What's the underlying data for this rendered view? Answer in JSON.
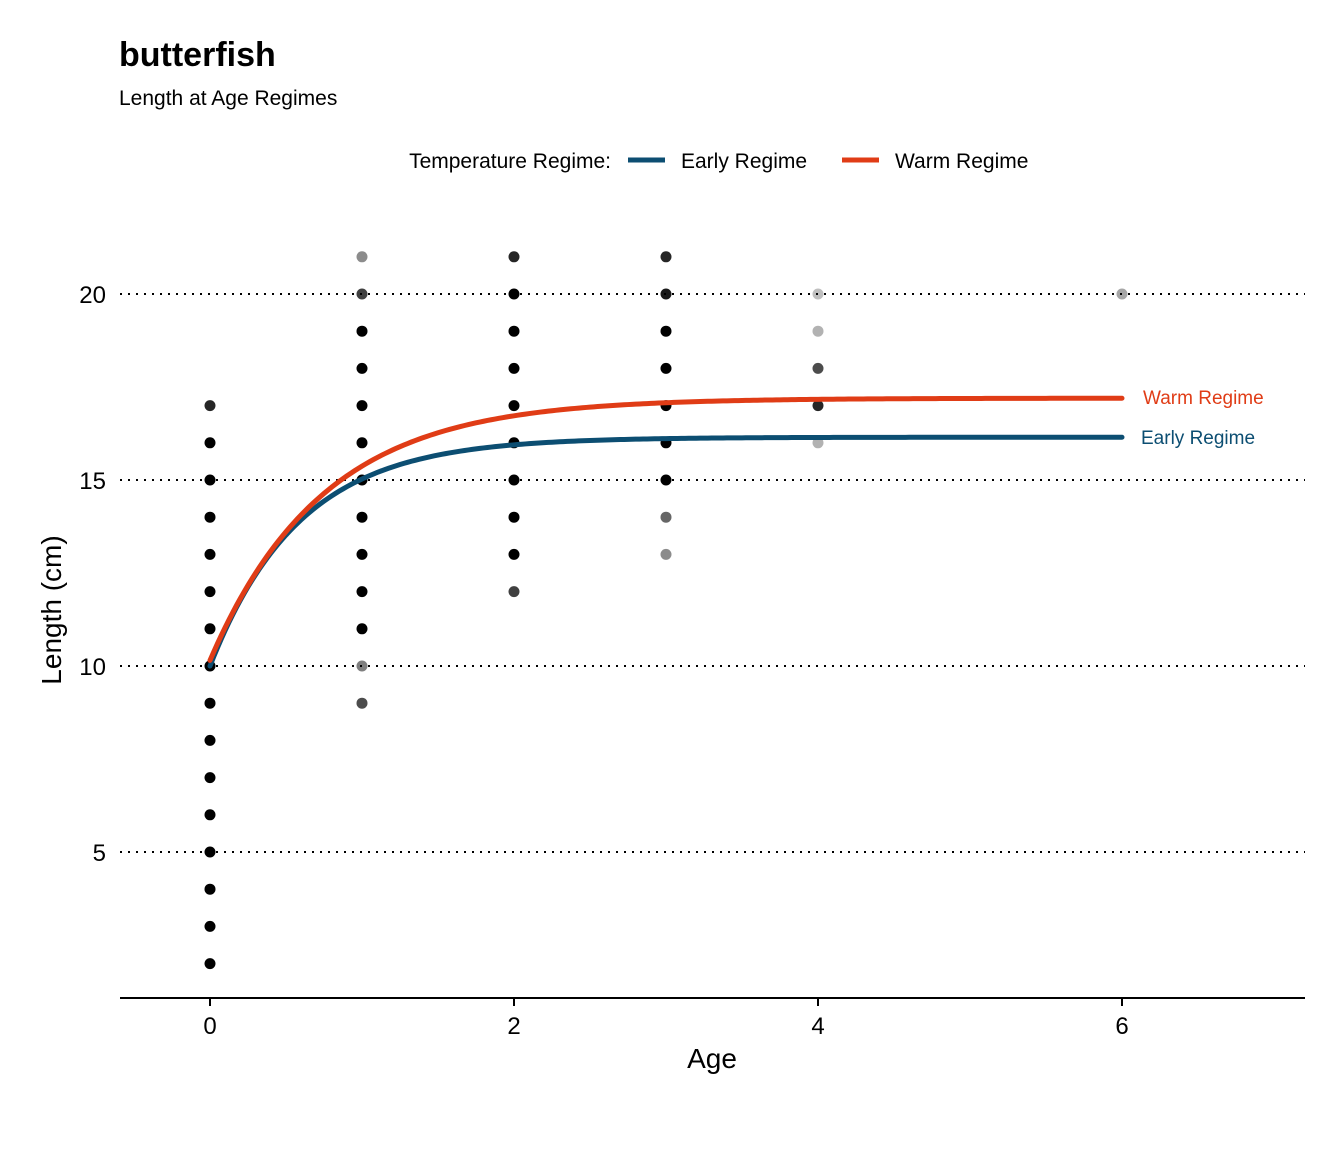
{
  "chart_data": {
    "type": "scatter",
    "title": "butterfish",
    "subtitle": "Length at Age Regimes",
    "xlabel": "Age",
    "ylabel": "Length (cm)",
    "xlim": [
      -0.6,
      7.2
    ],
    "ylim": [
      1,
      22
    ],
    "x_ticks": [
      "0",
      "2",
      "4",
      "6"
    ],
    "y_ticks": [
      "5",
      "10",
      "15",
      "20"
    ],
    "grid": "horizontal dotted",
    "legend": {
      "title": "Temperature Regime:",
      "position": "top",
      "entries": [
        {
          "label": "Early Regime",
          "color": "#0c4e72"
        },
        {
          "label": "Warm Regime",
          "color": "#e03c16"
        }
      ]
    },
    "points": [
      {
        "age": 0,
        "lengths": [
          2,
          3,
          4,
          5,
          6,
          7,
          8,
          9,
          10,
          11,
          12,
          13,
          14,
          15,
          16,
          17
        ],
        "opacity": [
          1,
          1,
          1,
          1,
          1,
          1,
          1,
          1,
          1,
          1,
          1,
          1,
          1,
          1,
          1,
          0.85
        ]
      },
      {
        "age": 1,
        "lengths": [
          9,
          10,
          11,
          12,
          13,
          14,
          15,
          16,
          17,
          18,
          19,
          20,
          21
        ],
        "opacity": [
          0.7,
          0.5,
          1,
          1,
          1,
          1,
          1,
          1,
          1,
          1,
          1,
          0.75,
          0.45
        ]
      },
      {
        "age": 2,
        "lengths": [
          12,
          13,
          14,
          15,
          16,
          17,
          18,
          19,
          20,
          21
        ],
        "opacity": [
          0.75,
          1,
          1,
          1,
          1,
          1,
          1,
          1,
          1,
          0.85
        ]
      },
      {
        "age": 3,
        "lengths": [
          13,
          14,
          15,
          16,
          17,
          18,
          19,
          20,
          21
        ],
        "opacity": [
          0.45,
          0.6,
          1,
          1,
          1,
          1,
          1,
          0.9,
          0.85
        ]
      },
      {
        "age": 4,
        "lengths": [
          16,
          17,
          18,
          19,
          20
        ],
        "opacity": [
          0.3,
          0.85,
          0.7,
          0.3,
          0.25
        ]
      },
      {
        "age": 6,
        "lengths": [
          20
        ],
        "opacity": [
          0.35
        ]
      }
    ],
    "series": [
      {
        "name": "Early Regime",
        "color": "#0c4e72",
        "Linf": 16.15,
        "K": 1.7,
        "L0": 10.0,
        "x_start": 0,
        "x_end": 6
      },
      {
        "name": "Warm Regime",
        "color": "#e03c16",
        "Linf": 17.2,
        "K": 1.35,
        "L0": 10.15,
        "x_start": 0,
        "x_end": 6
      }
    ]
  }
}
